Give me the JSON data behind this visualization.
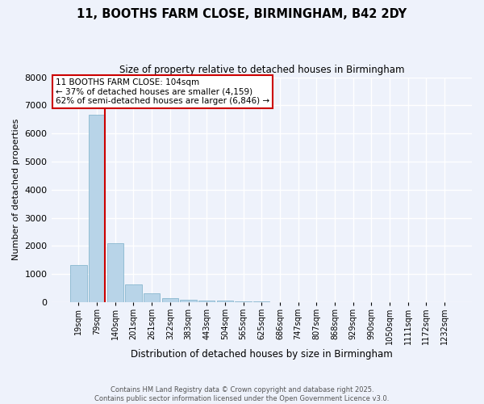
{
  "title": "11, BOOTHS FARM CLOSE, BIRMINGHAM, B42 2DY",
  "subtitle": "Size of property relative to detached houses in Birmingham",
  "xlabel": "Distribution of detached houses by size in Birmingham",
  "ylabel": "Number of detached properties",
  "bar_labels": [
    "19sqm",
    "79sqm",
    "140sqm",
    "201sqm",
    "261sqm",
    "322sqm",
    "383sqm",
    "443sqm",
    "504sqm",
    "565sqm",
    "625sqm",
    "686sqm",
    "747sqm",
    "807sqm",
    "868sqm",
    "929sqm",
    "990sqm",
    "1050sqm",
    "1111sqm",
    "1172sqm",
    "1232sqm"
  ],
  "bar_values": [
    1330,
    6660,
    2090,
    620,
    305,
    155,
    75,
    55,
    50,
    30,
    20,
    0,
    0,
    0,
    0,
    0,
    0,
    0,
    0,
    0,
    0
  ],
  "bar_color": "#b8d4e8",
  "bar_edge_color": "#7aafc8",
  "vline_color": "#cc0000",
  "annotation_title": "11 BOOTHS FARM CLOSE: 104sqm",
  "annotation_line1": "← 37% of detached houses are smaller (4,159)",
  "annotation_line2": "62% of semi-detached houses are larger (6,846) →",
  "annotation_box_color": "#ffffff",
  "annotation_box_edge": "#cc0000",
  "ylim": [
    0,
    8000
  ],
  "yticks": [
    0,
    1000,
    2000,
    3000,
    4000,
    5000,
    6000,
    7000,
    8000
  ],
  "bg_color": "#eef2fb",
  "grid_color": "#ffffff",
  "footer_line1": "Contains HM Land Registry data © Crown copyright and database right 2025.",
  "footer_line2": "Contains public sector information licensed under the Open Government Licence v3.0."
}
